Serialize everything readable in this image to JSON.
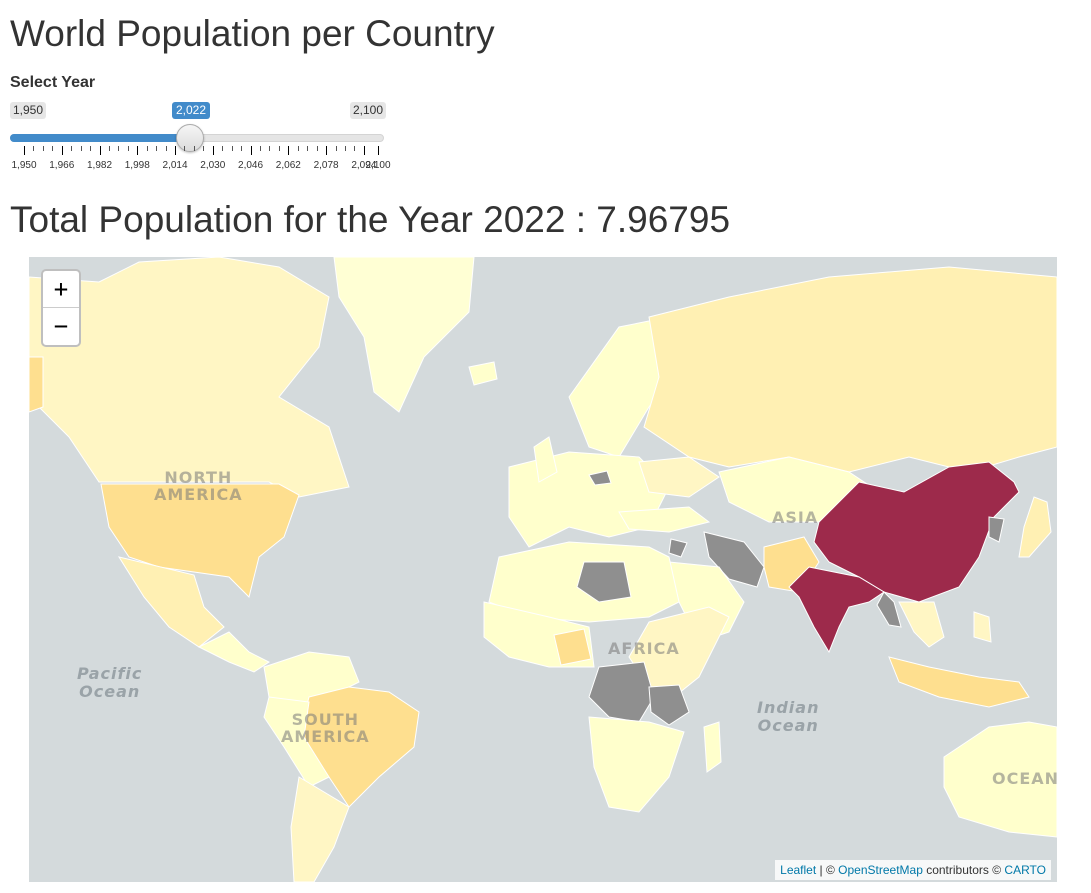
{
  "title": "World Population per Country",
  "slider": {
    "label": "Select Year",
    "min_label": "1,950",
    "max_label": "2,100",
    "value_label": "2,022",
    "min": 1950,
    "max": 2100,
    "value": 2022,
    "tick_labels": [
      "1,950",
      "1,966",
      "1,982",
      "1,998",
      "2,014",
      "2,030",
      "2,046",
      "2,062",
      "2,078",
      "2,094",
      "2,100"
    ],
    "fill_color": "#428bca"
  },
  "total": {
    "label": "Total Population for the Year 2022 : 7.96795"
  },
  "map": {
    "zoom_in": "+",
    "zoom_out": "−",
    "labels": {
      "north_america": "NORTH\nAMERICA",
      "south_america": "SOUTH\nAMERICA",
      "africa": "AFRICA",
      "asia": "ASIA",
      "oceania": "OCEAN",
      "pacific": "Pacific\nOcean",
      "indian": "Indian\nOcean"
    },
    "colors": {
      "ocean": "#d4dadc",
      "low": "#ffffcc",
      "low_mid": "#fff0b3",
      "mid": "#fedf8f",
      "high": "#9d2a4b",
      "no_data": "#8f8f8f"
    },
    "attribution": {
      "leaflet": "Leaflet",
      "sep": " | © ",
      "osm": "OpenStreetMap",
      "contrib": " contributors © ",
      "carto": "CARTO"
    }
  }
}
